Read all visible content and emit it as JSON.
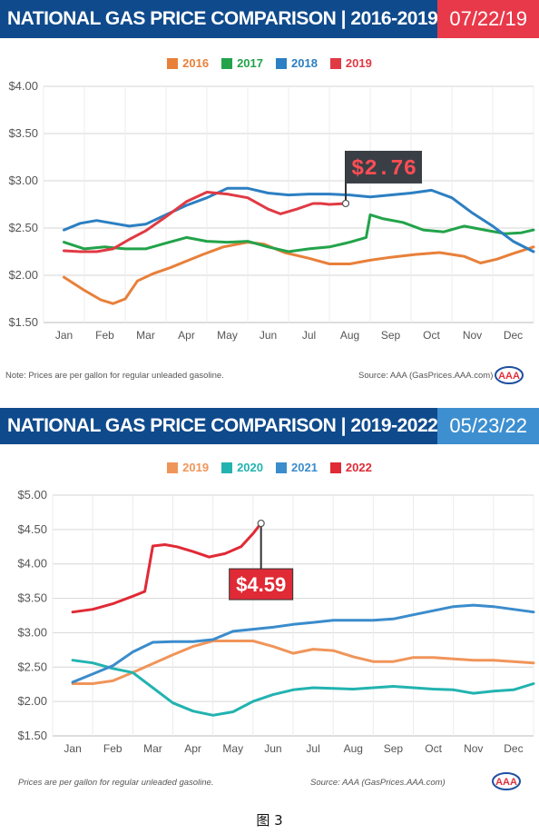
{
  "panels": [
    {
      "title": "NATIONAL GAS PRICE COMPARISON | 2016-2019",
      "date": "07/22/19",
      "note": "Note: Prices are per gallon for regular unleaded gasoline.",
      "source": "Source: AAA (GasPrices.AAA.com)",
      "chart_data": {
        "type": "line",
        "categories": [
          "Jan",
          "Feb",
          "Mar",
          "Apr",
          "May",
          "Jun",
          "Jul",
          "Aug",
          "Sep",
          "Oct",
          "Nov",
          "Dec"
        ],
        "ylim": [
          1.5,
          4.0
        ],
        "yticks": [
          "$4.00",
          "$3.50",
          "$3.00",
          "$2.50",
          "$2.00",
          "$1.50"
        ],
        "grid": true,
        "legend_position": "top-center",
        "callout": {
          "label": "$2.76",
          "value": 2.76,
          "month": 6.9
        },
        "series": [
          {
            "name": "2016",
            "color": "#e8803a",
            "points": [
              [
                0,
                1.98
              ],
              [
                0.5,
                1.84
              ],
              [
                0.9,
                1.74
              ],
              [
                1.2,
                1.7
              ],
              [
                1.5,
                1.75
              ],
              [
                1.8,
                1.94
              ],
              [
                2.2,
                2.02
              ],
              [
                2.6,
                2.08
              ],
              [
                3.0,
                2.15
              ],
              [
                3.4,
                2.22
              ],
              [
                3.9,
                2.3
              ],
              [
                4.5,
                2.35
              ],
              [
                4.9,
                2.33
              ],
              [
                5.4,
                2.24
              ],
              [
                6.0,
                2.18
              ],
              [
                6.5,
                2.12
              ],
              [
                7.0,
                2.12
              ],
              [
                7.5,
                2.16
              ],
              [
                8.0,
                2.19
              ],
              [
                8.6,
                2.22
              ],
              [
                9.2,
                2.24
              ],
              [
                9.8,
                2.2
              ],
              [
                10.2,
                2.13
              ],
              [
                10.6,
                2.17
              ],
              [
                11.0,
                2.23
              ],
              [
                11.5,
                2.3
              ]
            ]
          },
          {
            "name": "2017",
            "color": "#22a34a",
            "points": [
              [
                0,
                2.35
              ],
              [
                0.5,
                2.28
              ],
              [
                1.0,
                2.3
              ],
              [
                1.5,
                2.28
              ],
              [
                2.0,
                2.28
              ],
              [
                2.5,
                2.34
              ],
              [
                3.0,
                2.4
              ],
              [
                3.5,
                2.36
              ],
              [
                4.0,
                2.35
              ],
              [
                4.5,
                2.36
              ],
              [
                5.0,
                2.3
              ],
              [
                5.5,
                2.25
              ],
              [
                6.0,
                2.28
              ],
              [
                6.5,
                2.3
              ],
              [
                7.0,
                2.35
              ],
              [
                7.4,
                2.4
              ],
              [
                7.5,
                2.64
              ],
              [
                7.8,
                2.6
              ],
              [
                8.3,
                2.56
              ],
              [
                8.8,
                2.48
              ],
              [
                9.3,
                2.46
              ],
              [
                9.8,
                2.52
              ],
              [
                10.3,
                2.48
              ],
              [
                10.8,
                2.44
              ],
              [
                11.2,
                2.45
              ],
              [
                11.5,
                2.48
              ]
            ]
          },
          {
            "name": "2018",
            "color": "#2c7fc2",
            "points": [
              [
                0,
                2.48
              ],
              [
                0.4,
                2.55
              ],
              [
                0.8,
                2.58
              ],
              [
                1.2,
                2.55
              ],
              [
                1.6,
                2.52
              ],
              [
                2.0,
                2.54
              ],
              [
                2.5,
                2.64
              ],
              [
                3.0,
                2.74
              ],
              [
                3.5,
                2.82
              ],
              [
                4.0,
                2.92
              ],
              [
                4.5,
                2.92
              ],
              [
                5.0,
                2.87
              ],
              [
                5.5,
                2.85
              ],
              [
                6.0,
                2.86
              ],
              [
                6.5,
                2.86
              ],
              [
                7.0,
                2.85
              ],
              [
                7.5,
                2.83
              ],
              [
                8.0,
                2.85
              ],
              [
                8.5,
                2.87
              ],
              [
                9.0,
                2.9
              ],
              [
                9.5,
                2.82
              ],
              [
                10.0,
                2.66
              ],
              [
                10.5,
                2.52
              ],
              [
                11.0,
                2.36
              ],
              [
                11.5,
                2.25
              ]
            ]
          },
          {
            "name": "2019",
            "color": "#e03a44",
            "points": [
              [
                0,
                2.26
              ],
              [
                0.4,
                2.25
              ],
              [
                0.8,
                2.25
              ],
              [
                1.2,
                2.28
              ],
              [
                1.6,
                2.38
              ],
              [
                2.0,
                2.47
              ],
              [
                2.5,
                2.62
              ],
              [
                3.0,
                2.78
              ],
              [
                3.5,
                2.88
              ],
              [
                4.0,
                2.86
              ],
              [
                4.5,
                2.82
              ],
              [
                5.0,
                2.7
              ],
              [
                5.3,
                2.65
              ],
              [
                5.7,
                2.7
              ],
              [
                6.1,
                2.76
              ],
              [
                6.3,
                2.76
              ],
              [
                6.5,
                2.75
              ],
              [
                6.9,
                2.76
              ]
            ]
          }
        ]
      }
    },
    {
      "title": "NATIONAL GAS PRICE COMPARISON | 2019-2022",
      "date": "05/23/22",
      "note": "Prices are per gallon for regular unleaded gasoline.",
      "source": "Source: AAA (GasPrices.AAA.com)",
      "chart_data": {
        "type": "line",
        "categories": [
          "Jan",
          "Feb",
          "Mar",
          "Apr",
          "May",
          "Jun",
          "Jul",
          "Aug",
          "Sep",
          "Oct",
          "Nov",
          "Dec"
        ],
        "ylim": [
          1.5,
          5.0
        ],
        "yticks": [
          "$5.00",
          "$4.50",
          "$4.00",
          "$3.50",
          "$3.00",
          "$2.50",
          "$2.00",
          "$1.50"
        ],
        "grid": true,
        "legend_position": "top-center",
        "callout": {
          "label": "$4.59",
          "value": 4.59,
          "month": 4.7
        },
        "series": [
          {
            "name": "2019",
            "color": "#f0955a",
            "points": [
              [
                0,
                2.26
              ],
              [
                0.5,
                2.26
              ],
              [
                1.0,
                2.3
              ],
              [
                1.5,
                2.42
              ],
              [
                2.0,
                2.55
              ],
              [
                2.5,
                2.68
              ],
              [
                3.0,
                2.8
              ],
              [
                3.5,
                2.88
              ],
              [
                4.0,
                2.88
              ],
              [
                4.5,
                2.88
              ],
              [
                5.0,
                2.8
              ],
              [
                5.5,
                2.7
              ],
              [
                6.0,
                2.76
              ],
              [
                6.5,
                2.74
              ],
              [
                7.0,
                2.65
              ],
              [
                7.5,
                2.58
              ],
              [
                8.0,
                2.58
              ],
              [
                8.5,
                2.64
              ],
              [
                9.0,
                2.64
              ],
              [
                9.5,
                2.62
              ],
              [
                10.0,
                2.6
              ],
              [
                10.5,
                2.6
              ],
              [
                11.0,
                2.58
              ],
              [
                11.5,
                2.56
              ]
            ]
          },
          {
            "name": "2020",
            "color": "#22b3b0",
            "points": [
              [
                0,
                2.6
              ],
              [
                0.5,
                2.56
              ],
              [
                1.0,
                2.48
              ],
              [
                1.5,
                2.42
              ],
              [
                2.0,
                2.2
              ],
              [
                2.5,
                1.98
              ],
              [
                3.0,
                1.86
              ],
              [
                3.5,
                1.8
              ],
              [
                4.0,
                1.85
              ],
              [
                4.5,
                2.0
              ],
              [
                5.0,
                2.1
              ],
              [
                5.5,
                2.17
              ],
              [
                6.0,
                2.2
              ],
              [
                6.5,
                2.19
              ],
              [
                7.0,
                2.18
              ],
              [
                7.5,
                2.2
              ],
              [
                8.0,
                2.22
              ],
              [
                8.5,
                2.2
              ],
              [
                9.0,
                2.18
              ],
              [
                9.5,
                2.17
              ],
              [
                10.0,
                2.12
              ],
              [
                10.5,
                2.15
              ],
              [
                11.0,
                2.17
              ],
              [
                11.5,
                2.26
              ]
            ]
          },
          {
            "name": "2021",
            "color": "#3b8ccc",
            "points": [
              [
                0,
                2.28
              ],
              [
                0.5,
                2.4
              ],
              [
                1.0,
                2.52
              ],
              [
                1.5,
                2.72
              ],
              [
                2.0,
                2.86
              ],
              [
                2.5,
                2.87
              ],
              [
                3.0,
                2.87
              ],
              [
                3.5,
                2.9
              ],
              [
                4.0,
                3.02
              ],
              [
                4.5,
                3.05
              ],
              [
                5.0,
                3.08
              ],
              [
                5.5,
                3.12
              ],
              [
                6.0,
                3.15
              ],
              [
                6.5,
                3.18
              ],
              [
                7.0,
                3.18
              ],
              [
                7.5,
                3.18
              ],
              [
                8.0,
                3.2
              ],
              [
                8.5,
                3.26
              ],
              [
                9.0,
                3.32
              ],
              [
                9.5,
                3.38
              ],
              [
                10.0,
                3.4
              ],
              [
                10.5,
                3.38
              ],
              [
                11.0,
                3.34
              ],
              [
                11.5,
                3.3
              ]
            ]
          },
          {
            "name": "2022",
            "color": "#e02a36",
            "points": [
              [
                0,
                3.3
              ],
              [
                0.5,
                3.34
              ],
              [
                1.0,
                3.42
              ],
              [
                1.5,
                3.53
              ],
              [
                1.8,
                3.6
              ],
              [
                2.0,
                4.26
              ],
              [
                2.3,
                4.28
              ],
              [
                2.6,
                4.25
              ],
              [
                3.0,
                4.18
              ],
              [
                3.4,
                4.1
              ],
              [
                3.8,
                4.15
              ],
              [
                4.2,
                4.25
              ],
              [
                4.5,
                4.44
              ],
              [
                4.7,
                4.59
              ]
            ]
          }
        ]
      }
    }
  ],
  "caption": "图 3"
}
